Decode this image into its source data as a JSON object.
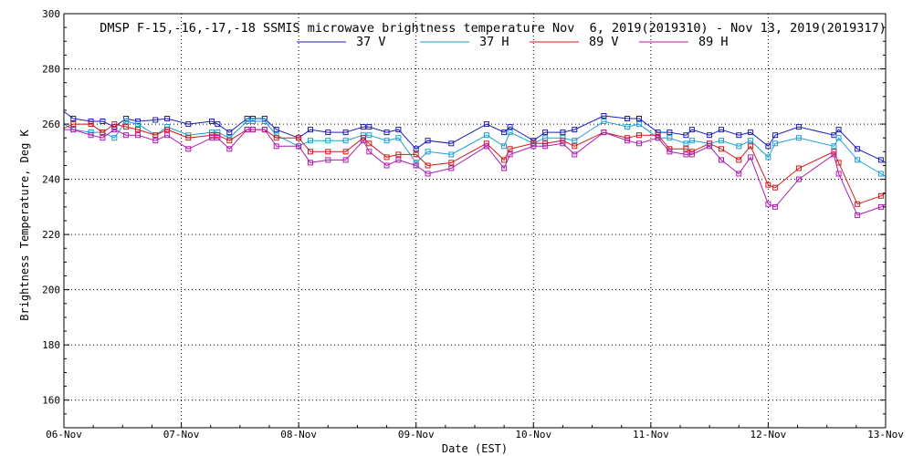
{
  "chart_data": {
    "type": "line",
    "title": "DMSP F-15,-16,-17,-18 SSMIS microwave brightness temperature Nov  6, 2019(2019310) - Nov 13, 2019(2019317)",
    "xlabel": "Date (EST)",
    "ylabel": "Brightness Temperature, Deg K",
    "xlim": [
      0,
      7
    ],
    "ylim": [
      150,
      300
    ],
    "x_ticks": [
      {
        "value": 0,
        "label": "06-Nov"
      },
      {
        "value": 1,
        "label": "07-Nov"
      },
      {
        "value": 2,
        "label": "08-Nov"
      },
      {
        "value": 3,
        "label": "09-Nov"
      },
      {
        "value": 4,
        "label": "10-Nov"
      },
      {
        "value": 5,
        "label": "11-Nov"
      },
      {
        "value": 6,
        "label": "12-Nov"
      },
      {
        "value": 7,
        "label": "13-Nov"
      }
    ],
    "y_ticks": [
      {
        "value": 160,
        "label": "160"
      },
      {
        "value": 180,
        "label": "180"
      },
      {
        "value": 200,
        "label": "200"
      },
      {
        "value": 220,
        "label": "220"
      },
      {
        "value": 240,
        "label": "240"
      },
      {
        "value": 260,
        "label": "260"
      },
      {
        "value": 280,
        "label": "280"
      },
      {
        "value": 300,
        "label": "300"
      }
    ],
    "grid": true,
    "legend_position": "top-center",
    "x": [
      0.0,
      0.08,
      0.23,
      0.33,
      0.43,
      0.53,
      0.63,
      0.78,
      0.88,
      1.06,
      1.26,
      1.31,
      1.41,
      1.56,
      1.61,
      1.71,
      1.81,
      2.0,
      2.1,
      2.25,
      2.4,
      2.55,
      2.6,
      2.75,
      2.85,
      3.0,
      3.1,
      3.3,
      3.6,
      3.75,
      3.8,
      4.0,
      4.1,
      4.25,
      4.35,
      4.6,
      4.8,
      4.9,
      5.06,
      5.16,
      5.3,
      5.35,
      5.5,
      5.6,
      5.75,
      5.85,
      6.0,
      6.06,
      6.26,
      6.56,
      6.6,
      6.76,
      6.96,
      7.0
    ],
    "series": [
      {
        "name": "37 V",
        "color": "#1c1cb4",
        "values": [
          264.5,
          262,
          261,
          261,
          259,
          262,
          261,
          261.5,
          262,
          260,
          261,
          260,
          257,
          262,
          262,
          262,
          258,
          255,
          258,
          257,
          257,
          259,
          259,
          257,
          258,
          251,
          254,
          253,
          260,
          257,
          259,
          254,
          257,
          257,
          258,
          263,
          262,
          262,
          257,
          257,
          256,
          258,
          256,
          258,
          256,
          257,
          252,
          256,
          259,
          256,
          258,
          251,
          247,
          246
        ]
      },
      {
        "name": "37 H",
        "color": "#1aa0d2",
        "values": [
          260,
          258,
          257,
          257,
          255,
          261,
          260,
          256,
          259,
          256,
          257,
          257,
          255,
          261,
          261,
          261,
          256,
          252,
          254,
          254,
          254,
          256,
          256,
          254,
          255,
          246,
          250,
          249,
          256,
          252,
          257,
          253,
          255,
          255,
          254,
          261,
          259,
          260,
          255,
          255,
          253,
          254,
          253,
          254,
          252,
          254,
          248,
          253,
          255,
          252,
          255,
          247,
          242,
          241
        ]
      },
      {
        "name": "89 V",
        "color": "#d01a1a",
        "values": [
          258.5,
          260,
          260,
          257,
          260,
          259,
          258,
          256,
          258,
          255,
          256,
          256,
          254,
          258,
          258,
          258,
          255,
          255,
          250,
          250,
          250,
          255,
          253,
          248,
          249,
          249,
          245,
          246,
          253,
          247,
          251,
          253,
          253,
          254,
          252,
          257,
          255,
          256,
          256,
          251,
          251,
          250,
          253,
          251,
          247,
          252,
          238,
          237,
          244,
          250,
          246,
          231,
          234,
          235
        ]
      },
      {
        "name": "89 H",
        "color": "#b01ab0",
        "values": [
          258,
          258,
          256,
          255,
          258,
          256,
          256,
          254,
          256,
          251,
          255,
          255,
          251,
          258,
          258,
          258,
          252,
          252,
          246,
          247,
          247,
          254,
          250,
          245,
          247,
          245,
          242,
          244,
          252,
          244,
          249,
          252,
          252,
          253,
          249,
          257,
          254,
          253,
          255,
          250,
          249,
          249,
          252,
          247,
          242,
          248,
          231,
          230,
          240,
          249,
          242,
          227,
          230,
          231
        ]
      }
    ]
  }
}
